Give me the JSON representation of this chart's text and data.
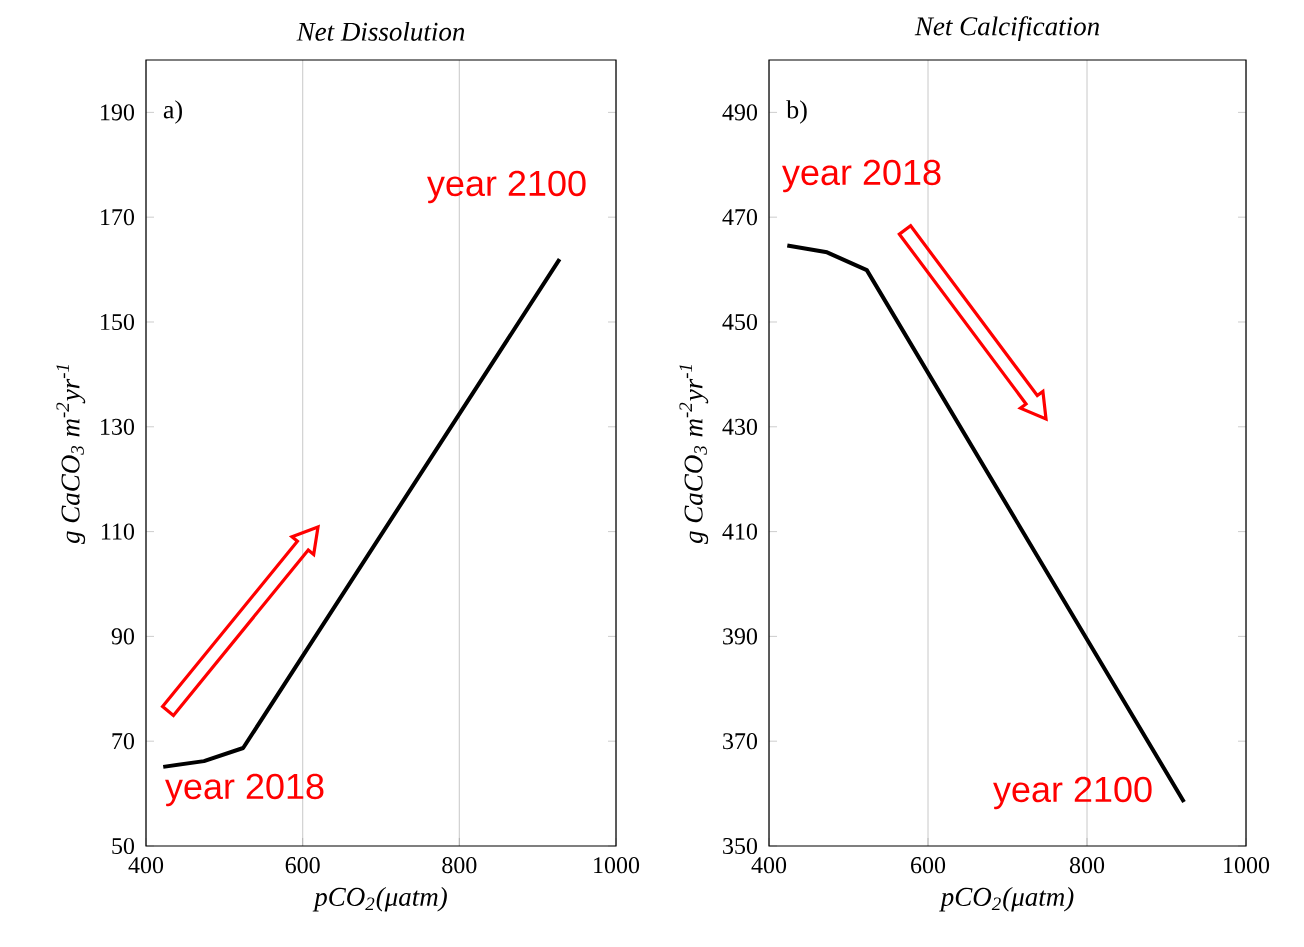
{
  "chart_data": [
    {
      "type": "line",
      "title": "Net Dissolution",
      "xlabel": "pCO$_{2}$(μatm)",
      "ylabel": "g CaCO$_{3}$ m$^{-2}$yr$^{-1}$",
      "x": [
        422,
        474,
        524,
        928
      ],
      "values": [
        65.1,
        66.2,
        68.7,
        162.0
      ],
      "color": "#000000",
      "xlim": [
        400,
        1000
      ],
      "ylim": [
        50,
        200
      ],
      "xticks": [
        400,
        600,
        800,
        1000
      ],
      "yticks": [
        50,
        70,
        90,
        110,
        130,
        150,
        170,
        190
      ],
      "grid": "x",
      "annotations": [
        "a)",
        "year 2100",
        "year 2018"
      ]
    },
    {
      "type": "line",
      "title": "Net Calcification",
      "xlabel": "pCO$_{2}$(μatm)",
      "ylabel": "g CaCO$_{3}$ m$^{-2}$yr$^{-1}$",
      "x": [
        423,
        473,
        523,
        922
      ],
      "values": [
        464.6,
        463.3,
        459.9,
        358.4
      ],
      "color": "#000000",
      "xlim": [
        400,
        1000
      ],
      "ylim": [
        350,
        500
      ],
      "xticks": [
        400,
        600,
        800,
        1000
      ],
      "yticks": [
        350,
        370,
        390,
        410,
        430,
        450,
        470,
        490
      ],
      "grid": "x",
      "annotations": [
        "b)",
        "year 2018",
        "year 2100"
      ]
    }
  ]
}
